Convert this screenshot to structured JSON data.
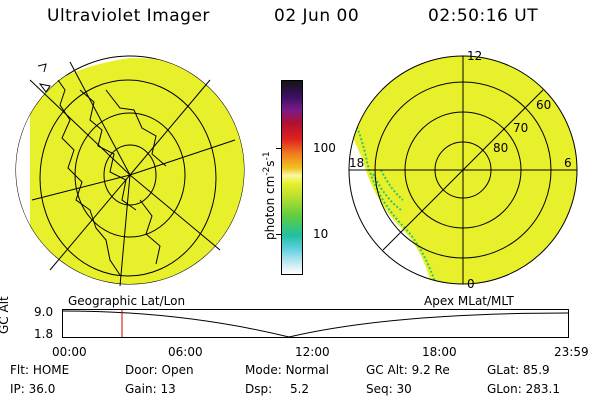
{
  "header": {
    "title": "Ultraviolet Imager",
    "date": "02 Jun 00",
    "time": "02:50:16 UT"
  },
  "colors": {
    "fill": "#e8f02c",
    "speckle": "#32c46a",
    "grid": "#000000",
    "marker": "#d40000"
  },
  "geo_panel": {
    "label": "Geographic Lat/Lon"
  },
  "mag_panel": {
    "label": "Apex MLat/MLT",
    "mlt_labels": [
      "12",
      "18",
      "6",
      "0"
    ],
    "lat_labels": [
      "60",
      "70",
      "80"
    ]
  },
  "colorbar": {
    "unit_label": "photon cm",
    "unit_exp1": "-2",
    "unit_s": "s",
    "unit_exp2": "-1",
    "tick_labels": [
      "100",
      "10"
    ]
  },
  "timeline": {
    "ylabel": "GC Alt",
    "ytick_top": "9.0",
    "ytick_bottom": "1.8",
    "xticks": [
      "00:00",
      "06:00",
      "12:00",
      "18:00",
      "23:59"
    ],
    "marker_time": "02:50"
  },
  "info": {
    "flt_label": "Flt:",
    "flt_value": "HOME",
    "ip_label": "IP:",
    "ip_value": "36.0",
    "door_label": "Door:",
    "door_value": "Open",
    "gain_label": "Gain:",
    "gain_value": "13",
    "mode_label": "Mode:",
    "mode_value": "Normal",
    "dsp_label": "Dsp:",
    "dsp_value": "5.2",
    "gcalt_label": "GC Alt:",
    "gcalt_value": "9.2 Re",
    "seq_label": "Seq:",
    "seq_value": "30",
    "glat_label": "GLat:",
    "glat_value": "85.9",
    "glon_label": "GLon:",
    "glon_value": "283.1"
  }
}
